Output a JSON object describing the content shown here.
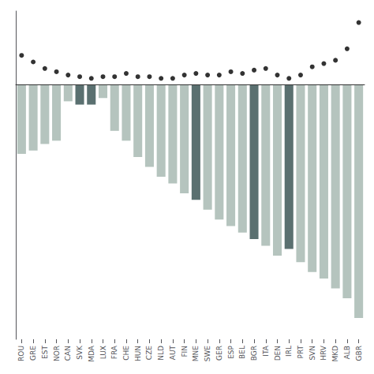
{
  "chart_data": {
    "type": "bar",
    "categories": [
      "ROU",
      "GRE",
      "EST",
      "NOR",
      "CAN",
      "SVK",
      "MDA",
      "LUX",
      "FRA",
      "CHE",
      "HUN",
      "CZE",
      "NLD",
      "AUT",
      "FIN",
      "MNE",
      "SWE",
      "GER",
      "ESP",
      "BEL",
      "BGR",
      "ITA",
      "DEN",
      "IRL",
      "PRT",
      "SVN",
      "HRV",
      "MKD",
      "ALB",
      "GBR"
    ],
    "series": [
      {
        "type": "bar",
        "values": [
          -0.42,
          -0.4,
          -0.36,
          -0.34,
          -0.1,
          -0.12,
          -0.12,
          -0.08,
          -0.28,
          -0.34,
          -0.44,
          -0.5,
          -0.56,
          -0.6,
          -0.66,
          -0.7,
          -0.76,
          -0.82,
          -0.86,
          -0.9,
          -0.94,
          -0.98,
          -1.04,
          -1.0,
          -1.08,
          -1.14,
          -1.18,
          -1.24,
          -1.3,
          -1.42
        ],
        "colors": [
          "#b5c4be",
          "#b5c4be",
          "#b5c4be",
          "#b5c4be",
          "#b5c4be",
          "#5a7070",
          "#5a7070",
          "#b5c4be",
          "#b5c4be",
          "#b5c4be",
          "#b5c4be",
          "#b5c4be",
          "#b5c4be",
          "#b5c4be",
          "#b5c4be",
          "#5a7070",
          "#b5c4be",
          "#b5c4be",
          "#b5c4be",
          "#b5c4be",
          "#5a7070",
          "#b5c4be",
          "#b5c4be",
          "#5a7070",
          "#b5c4be",
          "#b5c4be",
          "#b5c4be",
          "#b5c4be",
          "#b5c4be",
          "#b5c4be"
        ]
      },
      {
        "type": "scatter",
        "values": [
          0.18,
          0.14,
          0.1,
          0.08,
          0.06,
          0.05,
          0.04,
          0.05,
          0.05,
          0.07,
          0.05,
          0.05,
          0.04,
          0.04,
          0.06,
          0.07,
          0.06,
          0.06,
          0.08,
          0.07,
          0.09,
          0.1,
          0.06,
          0.04,
          0.06,
          0.11,
          0.13,
          0.15,
          0.22,
          0.38
        ],
        "color": "#000000"
      }
    ],
    "ylim": [
      -1.55,
      0.45
    ],
    "grid": false,
    "tick_labels": "x"
  }
}
